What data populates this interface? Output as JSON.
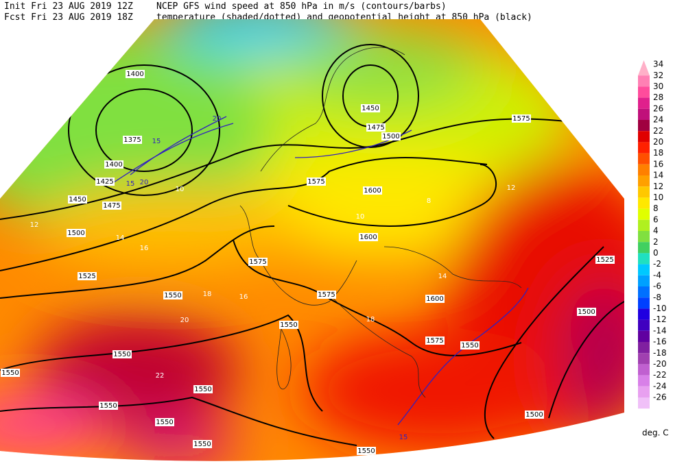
{
  "header": {
    "init": "Init  Fri 23 AUG 2019 12Z",
    "fcst": "Fcst Fri 23 AUG 2019 18Z",
    "line1": "NCEP GFS wind speed at 850 hPa in m/s (contours/barbs)",
    "line2": "temperature (shaded/dotted) and geopotential height at 850 hPa (black)"
  },
  "legend": {
    "unit": "deg. C",
    "levels": [
      {
        "value": 34,
        "color": "#ffb0c8"
      },
      {
        "value": 32,
        "color": "#ff80b4"
      },
      {
        "value": 30,
        "color": "#ff4c9c"
      },
      {
        "value": 28,
        "color": "#e0208c"
      },
      {
        "value": 26,
        "color": "#c0107a"
      },
      {
        "value": 24,
        "color": "#a00040"
      },
      {
        "value": 22,
        "color": "#e00000"
      },
      {
        "value": 20,
        "color": "#ff2000"
      },
      {
        "value": 18,
        "color": "#ff5000"
      },
      {
        "value": 16,
        "color": "#ff8000"
      },
      {
        "value": 14,
        "color": "#ffa000"
      },
      {
        "value": 12,
        "color": "#ffc800"
      },
      {
        "value": 10,
        "color": "#ffe800"
      },
      {
        "value": 8,
        "color": "#e0ff00"
      },
      {
        "value": 6,
        "color": "#b0f020"
      },
      {
        "value": 4,
        "color": "#80e040"
      },
      {
        "value": 2,
        "color": "#40d060"
      },
      {
        "value": 0,
        "color": "#20e0c0"
      },
      {
        "value": -2,
        "color": "#00c8ff"
      },
      {
        "value": -4,
        "color": "#00a0ff"
      },
      {
        "value": -6,
        "color": "#0070ff"
      },
      {
        "value": -8,
        "color": "#0040ff"
      },
      {
        "value": -10,
        "color": "#2000e0"
      },
      {
        "value": -12,
        "color": "#4000c0"
      },
      {
        "value": -14,
        "color": "#6000a0"
      },
      {
        "value": -16,
        "color": "#8020a0"
      },
      {
        "value": -18,
        "color": "#a040b0"
      },
      {
        "value": -20,
        "color": "#c060d0"
      },
      {
        "value": -22,
        "color": "#d880e8"
      },
      {
        "value": -24,
        "color": "#e8a0f0"
      },
      {
        "value": -26,
        "color": "#f0c0f8"
      }
    ]
  },
  "map": {
    "heights": [
      "1400",
      "1375",
      "1400",
      "1425",
      "1450",
      "1475",
      "1500",
      "1525",
      "1550",
      "1575",
      "1575",
      "1550",
      "1575",
      "1450",
      "1475",
      "1500",
      "1600",
      "1600",
      "1600",
      "1575",
      "1575",
      "1550",
      "1525",
      "1500",
      "1500",
      "1550",
      "1550",
      "1550",
      "1550",
      "1550",
      "1550",
      "1550"
    ],
    "temperatures": [
      "12",
      "14",
      "16",
      "10",
      "8",
      "10",
      "12",
      "14",
      "16",
      "18",
      "18",
      "20",
      "22"
    ],
    "winds": [
      "20",
      "15",
      "20",
      "15",
      "15"
    ]
  }
}
